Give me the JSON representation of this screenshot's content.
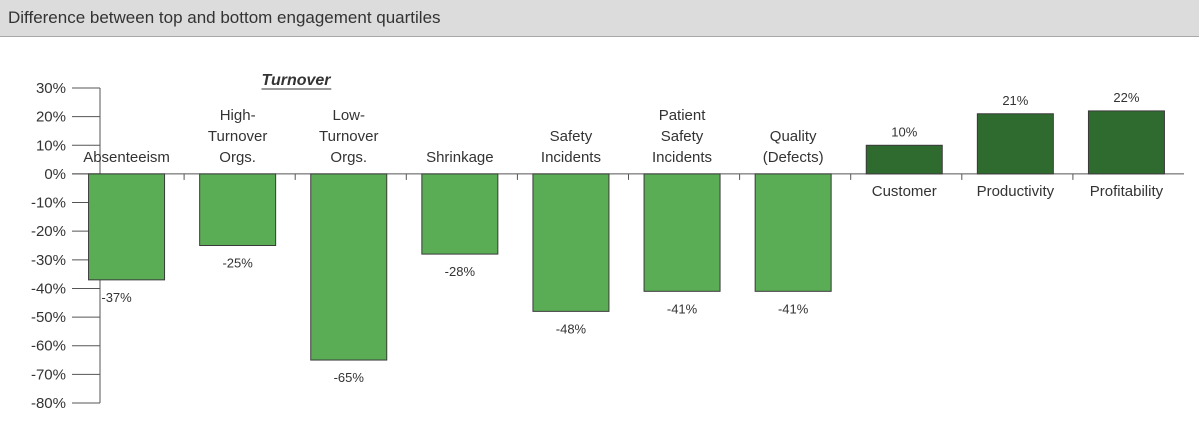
{
  "header": {
    "title": "Difference between top and bottom engagement quartiles"
  },
  "chart_data": {
    "type": "bar",
    "ylim": [
      -80,
      30
    ],
    "yticks": [
      30,
      20,
      10,
      0,
      -10,
      -20,
      -30,
      -40,
      -50,
      -60,
      -70,
      -80
    ],
    "ytick_labels": [
      "30%",
      "20%",
      "10%",
      "0%",
      "-10%",
      "-20%",
      "-30%",
      "-40%",
      "-50%",
      "-60%",
      "-70%",
      "-80%"
    ],
    "grid": false,
    "group_label": "Turnover",
    "categories": [
      [
        "Absenteeism"
      ],
      [
        "High-",
        "Turnover",
        "Orgs."
      ],
      [
        "Low-",
        "Turnover",
        "Orgs."
      ],
      [
        "Shrinkage"
      ],
      [
        "Safety",
        "Incidents"
      ],
      [
        "Patient",
        "Safety",
        "Incidents"
      ],
      [
        "Quality",
        "(Defects)"
      ],
      [
        "Customer"
      ],
      [
        "Productivity"
      ],
      [
        "Profitability"
      ]
    ],
    "values": [
      -37,
      -25,
      -65,
      -28,
      -48,
      -41,
      -41,
      10,
      21,
      22
    ],
    "value_labels": [
      "-37%",
      "-25%",
      "-65%",
      "-28%",
      "-48%",
      "-41%",
      "-41%",
      "10%",
      "21%",
      "22%"
    ],
    "colors": {
      "negative_fill": "#5aad55",
      "positive_fill": "#2f6b2f",
      "bar_stroke": "#3a3a3a",
      "axis": "#555555"
    }
  }
}
